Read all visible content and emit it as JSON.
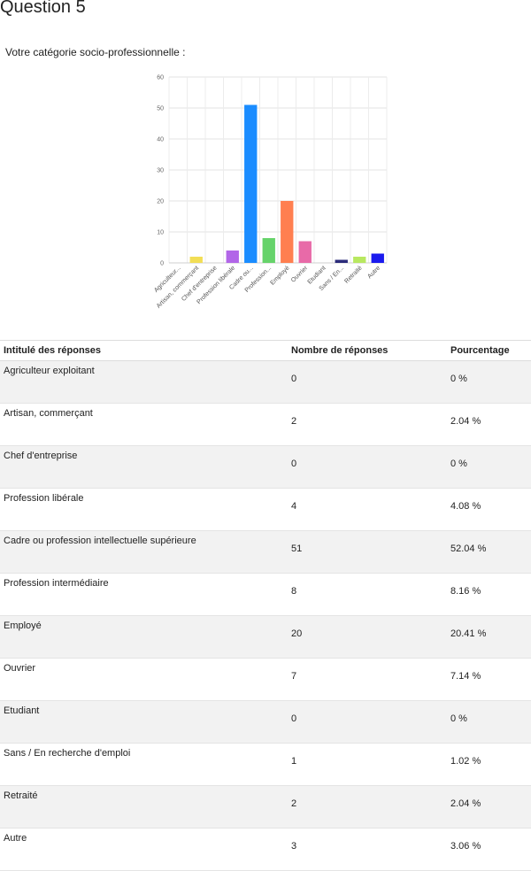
{
  "page": {
    "title": "Question 5"
  },
  "question": {
    "label": "Votre catégorie socio-professionnelle :"
  },
  "table": {
    "headers": [
      "Intitulé des réponses",
      "Nombre de réponses",
      "Pourcentage"
    ],
    "rows": [
      {
        "label": "Agriculteur exploitant",
        "count": "0",
        "percent": "0 %"
      },
      {
        "label": "Artisan, commerçant",
        "count": "2",
        "percent": "2.04 %"
      },
      {
        "label": "Chef d'entreprise",
        "count": "0",
        "percent": "0 %"
      },
      {
        "label": "Profession libérale",
        "count": "4",
        "percent": "4.08 %"
      },
      {
        "label": "Cadre ou profession intellectuelle supérieure",
        "count": "51",
        "percent": "52.04 %"
      },
      {
        "label": "Profession intermédiaire",
        "count": "8",
        "percent": "8.16 %"
      },
      {
        "label": "Employé",
        "count": "20",
        "percent": "20.41 %"
      },
      {
        "label": "Ouvrier",
        "count": "7",
        "percent": "7.14 %"
      },
      {
        "label": "Etudiant",
        "count": "0",
        "percent": "0 %"
      },
      {
        "label": "Sans / En recherche d'emploi",
        "count": "1",
        "percent": "1.02 %"
      },
      {
        "label": "Retraité",
        "count": "2",
        "percent": "2.04 %"
      },
      {
        "label": "Autre",
        "count": "3",
        "percent": "3.06 %"
      }
    ]
  },
  "chart_data": {
    "type": "bar",
    "categories": [
      "Agriculteur...",
      "Artisan, commerçant",
      "Chef d'entreprise",
      "Profession libérale",
      "Cadre ou...",
      "Profession...",
      "Employé",
      "Ouvrier",
      "Etudiant",
      "Sans / En...",
      "Retraité",
      "Autre"
    ],
    "values": [
      0,
      2,
      0,
      4,
      51,
      8,
      20,
      7,
      0,
      1,
      2,
      3
    ],
    "colors": [
      "#f2de55",
      "#f2de55",
      "#f2a04a",
      "#b266e8",
      "#1a8cff",
      "#66d36a",
      "#ff7f50",
      "#e86aa8",
      "#80c8e8",
      "#2b2b7a",
      "#b8e860",
      "#1a1aee"
    ],
    "yticks": [
      0,
      10,
      20,
      30,
      40,
      50,
      60
    ],
    "ylim": [
      0,
      60
    ],
    "grid": true
  }
}
